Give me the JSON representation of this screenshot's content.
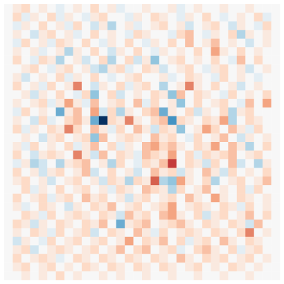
{
  "chart_data": {
    "type": "heatmap",
    "cmap": "RdBu_r",
    "zlim": [
      -1,
      1
    ],
    "values": [
      [
        0,
        0.1,
        0.2,
        0,
        0.1,
        0,
        -0.1,
        0,
        0.1,
        0,
        0.2,
        0,
        0.1,
        -0.1,
        0,
        0,
        0.1,
        0,
        0,
        0.1,
        -0.1,
        0,
        0.1,
        0,
        0,
        0.1,
        0,
        0,
        0.1,
        0,
        0,
        0
      ],
      [
        0,
        0.2,
        -0.1,
        0.1,
        0,
        0.2,
        -0.1,
        0.1,
        0,
        -0.1,
        0.1,
        0.2,
        0,
        0,
        -0.1,
        0.1,
        0,
        0.2,
        0.1,
        0,
        -0.1,
        0.1,
        0,
        0.2,
        0,
        -0.1,
        0,
        0.1,
        0,
        0.2,
        -0.1,
        0
      ],
      [
        0,
        -0.1,
        0.1,
        0,
        0.2,
        0,
        0.1,
        -0.1,
        0.2,
        0,
        -0.2,
        0.1,
        -0.3,
        0,
        0.1,
        -0.1,
        0,
        0.1,
        0.2,
        0,
        0.1,
        -0.2,
        0,
        0.1,
        0.2,
        0,
        -0.2,
        0.1,
        0,
        -0.1,
        0.2,
        0
      ],
      [
        0,
        0.1,
        0,
        -0.2,
        0.1,
        0.2,
        0,
        0.1,
        -0.1,
        0,
        0.2,
        0,
        0.1,
        0,
        -0.1,
        0.2,
        0.1,
        0,
        0,
        -0.1,
        0.2,
        0.3,
        0,
        -0.1,
        0.1,
        0,
        0.2,
        -0.3,
        0.1,
        0,
        0.1,
        0
      ],
      [
        0,
        -0.1,
        0.2,
        0,
        0.1,
        -0.1,
        0.2,
        0.1,
        0,
        0.2,
        0,
        -0.1,
        0.1,
        0,
        0.2,
        0,
        -0.1,
        0.1,
        0,
        0.2,
        0,
        0.3,
        0,
        0.1,
        0.3,
        0,
        0.1,
        0,
        -0.2,
        0,
        0.1,
        0
      ],
      [
        0,
        0.1,
        0,
        0.1,
        -0.1,
        0,
        0.1,
        -0.3,
        0.1,
        0,
        0.2,
        0,
        -0.2,
        0.1,
        0,
        0.2,
        0,
        -0.1,
        0.1,
        0,
        0.1,
        0,
        0.2,
        0,
        0.4,
        0.1,
        0,
        0.2,
        0,
        0.1,
        0,
        0
      ],
      [
        0,
        0.2,
        0,
        -0.1,
        0.2,
        0.1,
        -0.3,
        0,
        0.1,
        -0.2,
        0,
        0.2,
        -0.3,
        0,
        0.2,
        -0.2,
        0.1,
        -0.4,
        0,
        0.1,
        0.2,
        0,
        0.1,
        0,
        0.2,
        0,
        -0.1,
        0.3,
        0,
        0.2,
        0,
        0
      ],
      [
        0,
        0,
        0.1,
        0.2,
        0,
        -0.1,
        0.1,
        0.2,
        0,
        0.1,
        -0.2,
        -0.3,
        0.1,
        0.2,
        -0.1,
        0,
        0.2,
        0.1,
        -0.2,
        0,
        0.1,
        0.2,
        0,
        -0.1,
        0.1,
        0.2,
        0,
        0.1,
        -0.2,
        0,
        0.1,
        0
      ],
      [
        0,
        0.1,
        -0.2,
        0,
        0.1,
        0,
        0.2,
        -0.1,
        0.1,
        0,
        0.2,
        0,
        -0.1,
        0,
        0.1,
        0.2,
        0,
        0,
        0.1,
        -0.1,
        0,
        0.2,
        0.1,
        0,
        -0.1,
        0.2,
        0,
        0.1,
        0,
        -0.1,
        0,
        0
      ],
      [
        0,
        0.2,
        0,
        0.1,
        -0.1,
        0.2,
        0,
        0.1,
        0.5,
        0,
        -0.2,
        0.1,
        0,
        0.2,
        -0.1,
        0.1,
        0.2,
        0,
        -0.3,
        0,
        0.1,
        0.5,
        0.1,
        0,
        0.2,
        0,
        0.1,
        -0.2,
        0,
        0.1,
        0,
        0
      ],
      [
        0,
        0,
        0.1,
        -0.2,
        0.1,
        0,
        0.2,
        0,
        -0.1,
        0.2,
        -0.4,
        0,
        0.2,
        -0.2,
        0,
        0.1,
        0,
        0.2,
        0.1,
        -0.4,
        0.3,
        0,
        0.2,
        0.1,
        0,
        -0.1,
        0.2,
        0,
        0.1,
        0,
        0.2,
        0
      ],
      [
        0,
        0.1,
        0,
        0.1,
        0.2,
        -0.1,
        0.1,
        0.4,
        0.1,
        -0.1,
        0.3,
        0,
        0.1,
        0.2,
        0,
        0.3,
        -0.1,
        0.2,
        0,
        0.1,
        -0.4,
        0,
        0.2,
        0,
        0.1,
        0.2,
        0,
        -0.1,
        0.3,
        0,
        0.4,
        0
      ],
      [
        0,
        -0.1,
        0.2,
        0,
        0.1,
        0,
        -0.5,
        0.1,
        0.3,
        0,
        0.4,
        -0.2,
        0.2,
        -0.3,
        0.1,
        0,
        0.2,
        0.3,
        -0.5,
        0.1,
        0,
        0.2,
        -0.2,
        0.1,
        0,
        0.2,
        -0.3,
        0.1,
        0.2,
        0,
        0,
        0
      ],
      [
        0,
        0.1,
        0,
        -0.2,
        0.2,
        -0.1,
        0,
        0.2,
        0.3,
        0.1,
        -0.5,
        -1,
        0.2,
        0.1,
        0.5,
        0.1,
        0,
        0.2,
        0.3,
        -0.6,
        0.2,
        0.1,
        0,
        0.2,
        0.1,
        0.4,
        -0.3,
        0,
        0.2,
        0.1,
        0,
        0
      ],
      [
        0,
        0.2,
        -0.1,
        0.1,
        0,
        0.2,
        0.1,
        0.5,
        0.2,
        0,
        0.3,
        0.1,
        -0.1,
        0.2,
        0,
        0.3,
        0.1,
        -0.2,
        0.2,
        0.1,
        -0.4,
        0,
        0.1,
        0.4,
        0.2,
        0,
        0.3,
        0.1,
        -0.1,
        0.2,
        0,
        0
      ],
      [
        0,
        0,
        0.1,
        0,
        -0.2,
        0.1,
        0.2,
        0,
        0.1,
        0.2,
        -0.4,
        0.3,
        0,
        0.1,
        0.2,
        0.1,
        0,
        0.3,
        0.1,
        0.2,
        0,
        -0.1,
        0.2,
        0,
        0.1,
        0.3,
        0,
        -0.2,
        0.1,
        0,
        0.1,
        0
      ],
      [
        0,
        0.1,
        -0.1,
        0.2,
        0,
        0.1,
        0,
        0.2,
        -0.1,
        0.1,
        0.3,
        0,
        0.2,
        -0.1,
        0.1,
        0,
        0.3,
        0.4,
        0.2,
        0.3,
        0.1,
        0,
        0.2,
        0.1,
        0.4,
        0,
        0.3,
        0.1,
        -0.3,
        0,
        0.2,
        0
      ],
      [
        0,
        0.2,
        0,
        -0.2,
        0.1,
        0.2,
        0.1,
        0,
        0.5,
        0.1,
        -0.2,
        0.3,
        0,
        0.2,
        0.1,
        -0.1,
        0.3,
        0.2,
        0.1,
        0.4,
        0,
        0.2,
        -0.1,
        0.2,
        0.1,
        0.2,
        0.3,
        0,
        0.1,
        0.2,
        0,
        0
      ],
      [
        0,
        -0.1,
        0.1,
        -0.3,
        -0.2,
        0,
        -0.3,
        0.1,
        0.2,
        0.3,
        0,
        0.1,
        -0.3,
        0.2,
        0,
        -0.1,
        0.2,
        0.1,
        0.3,
        0.7,
        0,
        0.2,
        0.1,
        -0.2,
        0.2,
        0,
        0.3,
        -0.2,
        0,
        -0.3,
        0.1,
        0
      ],
      [
        0,
        0.2,
        0,
        0.1,
        -0.2,
        0.1,
        0.2,
        0,
        0.1,
        0.3,
        -0.2,
        0,
        0.2,
        0,
        0.1,
        -0.2,
        0,
        0.3,
        0.1,
        0.2,
        -0.2,
        0.1,
        0,
        0.3,
        0.1,
        -0.2,
        0.2,
        0,
        0.1,
        0,
        0.2,
        0
      ],
      [
        0,
        0.1,
        0.2,
        0,
        0.1,
        -0.2,
        0,
        0.1,
        0.2,
        0,
        0.1,
        -0.2,
        0.2,
        0.1,
        -0.3,
        0.2,
        0.1,
        0.6,
        -0.3,
        -0.4,
        0.4,
        0.1,
        0,
        0.2,
        -0.3,
        0,
        0.1,
        0.2,
        0,
        0.1,
        0.3,
        0
      ],
      [
        0,
        0,
        0.2,
        -0.1,
        0.1,
        0,
        0.2,
        0,
        0.1,
        0.2,
        0,
        0.1,
        -0.1,
        0.2,
        0.1,
        0,
        0.3,
        0.2,
        0.1,
        -0.3,
        0.2,
        0,
        0.1,
        0.3,
        0,
        0.1,
        0,
        0.2,
        -0.1,
        0.2,
        0,
        0
      ],
      [
        0,
        0.2,
        0,
        0.1,
        0.2,
        -0.1,
        0.1,
        0.2,
        0,
        0.3,
        0.1,
        0.2,
        0,
        0.1,
        -0.2,
        0.1,
        0.2,
        0,
        0.1,
        0.2,
        0,
        0.3,
        0.1,
        0,
        0.4,
        0.1,
        0,
        0.2,
        0.1,
        0,
        0.1,
        0
      ],
      [
        0,
        0.1,
        -0.1,
        0,
        0.2,
        0.1,
        0,
        -0.2,
        0.1,
        0,
        0.2,
        0.1,
        0.3,
        0,
        0.1,
        0.2,
        0,
        0.1,
        0.2,
        0.4,
        0,
        0.1,
        0.2,
        0.1,
        0,
        0.2,
        0.1,
        -0.1,
        0.2,
        0,
        0.1,
        0
      ],
      [
        0,
        0,
        0.2,
        0.1,
        -0.1,
        0.2,
        0,
        0.1,
        0.2,
        0.1,
        0,
        0.2,
        0.1,
        -0.2,
        0.3,
        0.1,
        0.2,
        0,
        0.3,
        0.4,
        0.1,
        0,
        0.2,
        -0.2,
        0.1,
        0.2,
        0,
        0.1,
        0.3,
        0,
        0.2,
        0
      ],
      [
        0,
        0.2,
        0.1,
        -0.2,
        0.1,
        0,
        0.2,
        0.1,
        0,
        0.2,
        0.1,
        0.3,
        0,
        -0.5,
        0.1,
        0.2,
        0.3,
        0,
        0.1,
        0.2,
        0.3,
        0.1,
        0,
        0.2,
        0.1,
        0,
        0.2,
        0.1,
        -0.2,
        0.3,
        0,
        0
      ],
      [
        0,
        0.1,
        0,
        0.2,
        0.1,
        -0.1,
        0.2,
        0,
        0.1,
        0.2,
        -0.2,
        0,
        0.2,
        0.1,
        0,
        0.3,
        0.1,
        -0.1,
        0.2,
        0,
        0.1,
        0.2,
        0.1,
        0,
        0.2,
        0.1,
        0,
        0.2,
        0.5,
        0,
        0.1,
        0
      ],
      [
        0,
        -0.2,
        0.1,
        0,
        -0.1,
        0.2,
        0,
        0.1,
        0.2,
        0,
        0.1,
        0.2,
        0,
        0.1,
        0.4,
        0,
        0.2,
        0.1,
        0.3,
        0,
        0.2,
        -0.1,
        0.1,
        0.2,
        0,
        0.3,
        0.1,
        0,
        0.2,
        0.1,
        0,
        0
      ],
      [
        0,
        0.1,
        0.2,
        -0.2,
        0,
        0.1,
        0.2,
        0.1,
        0,
        0.1,
        0.2,
        0,
        0.1,
        0.3,
        0,
        0.2,
        0.3,
        0,
        0.1,
        0.2,
        -0.1,
        0,
        0.2,
        0.3,
        0.1,
        0,
        0.2,
        -0.1,
        0.1,
        0.2,
        0,
        0
      ],
      [
        0,
        0.2,
        0,
        0.1,
        0.2,
        0.1,
        -0.1,
        0,
        0.2,
        0.1,
        0,
        0.2,
        0.1,
        0,
        0.2,
        0.1,
        0,
        0.2,
        0.1,
        0,
        0.3,
        0.1,
        0,
        0.2,
        0.1,
        0.2,
        0,
        0.1,
        0.2,
        0,
        0.1,
        0
      ],
      [
        0,
        0.1,
        0.2,
        0,
        0.1,
        0.2,
        0,
        0.1,
        0,
        0.2,
        0.1,
        0,
        0.2,
        0.1,
        0,
        0.2,
        0.1,
        0,
        0.2,
        0.1,
        0,
        0.1,
        0.2,
        0,
        0.1,
        0,
        0.2,
        0.1,
        0,
        0.1,
        0,
        0
      ],
      [
        0,
        0,
        0.1,
        0,
        0.1,
        0,
        0.2,
        0,
        0.1,
        0,
        0,
        0.1,
        0,
        0.1,
        0,
        0,
        0.1,
        0,
        0,
        0.1,
        0,
        0,
        0.1,
        0,
        0,
        0.1,
        0,
        0,
        0.1,
        0,
        0,
        0
      ]
    ]
  }
}
